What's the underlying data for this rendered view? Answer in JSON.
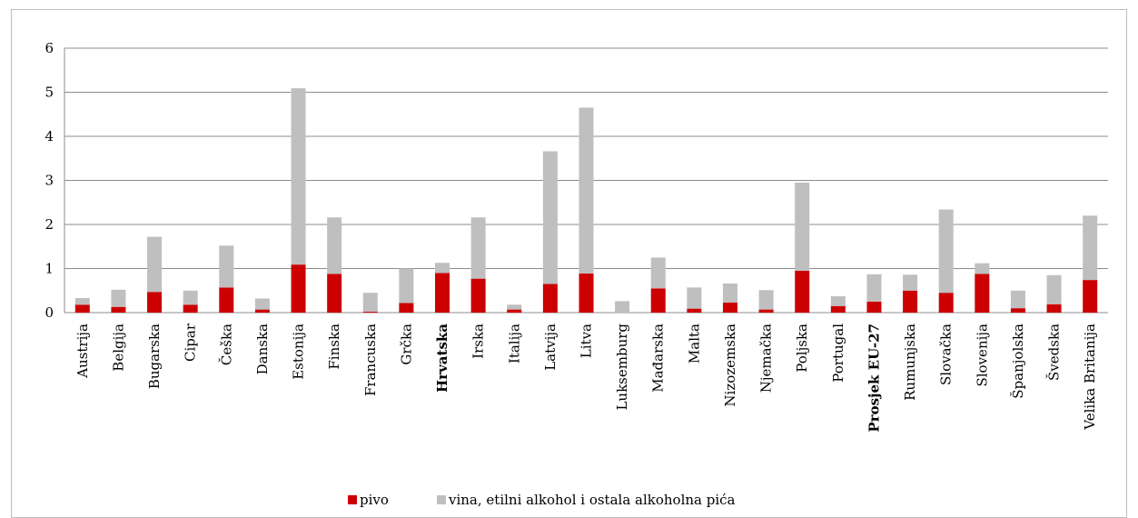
{
  "chart_data": {
    "type": "bar",
    "stacked": true,
    "categories": [
      "Austrija",
      "Belgija",
      "Bugarska",
      "Cipar",
      "Češka",
      "Danska",
      "Estonija",
      "Finska",
      "Francuska",
      "Grčka",
      "Hrvatska",
      "Irska",
      "Italija",
      "Latvija",
      "Litva",
      "Luksemburg",
      "Mađarska",
      "Malta",
      "Nizozemska",
      "Njemačka",
      "Poljska",
      "Portugal",
      "Prosjek EU-27",
      "Rumunjska",
      "Slovačka",
      "Slovenija",
      "Španjolska",
      "Švedska",
      "Velika Britanija"
    ],
    "bold_categories": [
      "Hrvatska",
      "Prosjek EU-27"
    ],
    "series": [
      {
        "name": "pivo",
        "color": "#cc0000",
        "values": [
          0.18,
          0.13,
          0.47,
          0.18,
          0.57,
          0.07,
          1.09,
          0.88,
          0.02,
          0.22,
          0.9,
          0.77,
          0.07,
          0.65,
          0.89,
          0.0,
          0.55,
          0.09,
          0.23,
          0.07,
          0.95,
          0.15,
          0.25,
          0.5,
          0.45,
          0.88,
          0.1,
          0.19,
          0.74
        ]
      },
      {
        "name": "vina, etilni alkohol i ostala alkoholna pića",
        "color": "#bfbfbf",
        "values": [
          0.15,
          0.39,
          1.25,
          0.32,
          0.95,
          0.25,
          4.0,
          1.28,
          0.43,
          0.78,
          0.23,
          1.39,
          0.11,
          3.01,
          3.76,
          0.26,
          0.7,
          0.48,
          0.43,
          0.44,
          2.0,
          0.22,
          0.62,
          0.36,
          1.89,
          0.24,
          0.4,
          0.66,
          1.46
        ]
      }
    ],
    "ylim": [
      0,
      6
    ],
    "yticks": [
      "0",
      "1",
      "2",
      "3",
      "4",
      "5",
      "6"
    ],
    "grid": true,
    "legend_position": "bottom"
  }
}
